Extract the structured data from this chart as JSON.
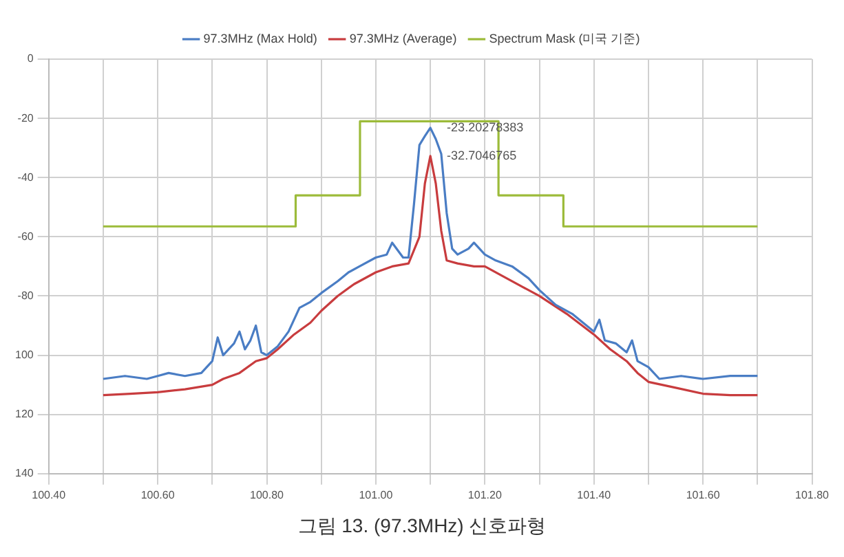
{
  "chart_data": {
    "type": "line",
    "xlim": [
      100.4,
      101.8
    ],
    "xticks": [
      {
        "value": 100.4,
        "label": "100.40"
      },
      {
        "value": 100.5,
        "label": null
      },
      {
        "value": 100.6,
        "label": "100.60"
      },
      {
        "value": 100.7,
        "label": null
      },
      {
        "value": 100.8,
        "label": "100.80"
      },
      {
        "value": 100.9,
        "label": null
      },
      {
        "value": 101.0,
        "label": "101.00"
      },
      {
        "value": 101.1,
        "label": null
      },
      {
        "value": 101.2,
        "label": "101.20"
      },
      {
        "value": 101.3,
        "label": null
      },
      {
        "value": 101.4,
        "label": "101.40"
      },
      {
        "value": 101.5,
        "label": null
      },
      {
        "value": 101.6,
        "label": "101.60"
      },
      {
        "value": 101.7,
        "label": null
      },
      {
        "value": 101.8,
        "label": "101.80"
      }
    ],
    "ylim": [
      -140,
      0
    ],
    "yticks": [
      0,
      -20,
      -40,
      -60,
      -80,
      {
        "value": -100,
        "label": "100"
      },
      {
        "value": -120,
        "label": "120"
      },
      {
        "value": -140,
        "label": "140"
      }
    ],
    "grid": true,
    "legend": "top",
    "marker": "none",
    "series": [
      {
        "name": "97.3MHz (Max Hold)",
        "color": "#4a7dc4",
        "x": [
          100.5,
          100.54,
          100.58,
          100.6,
          100.62,
          100.65,
          100.68,
          100.7,
          100.71,
          100.72,
          100.74,
          100.75,
          100.76,
          100.77,
          100.78,
          100.79,
          100.8,
          100.82,
          100.84,
          100.86,
          100.88,
          100.9,
          100.93,
          100.95,
          100.97,
          101.0,
          101.02,
          101.03,
          101.05,
          101.06,
          101.07,
          101.08,
          101.09,
          101.1,
          101.11,
          101.12,
          101.13,
          101.14,
          101.15,
          101.17,
          101.18,
          101.2,
          101.22,
          101.25,
          101.28,
          101.3,
          101.33,
          101.36,
          101.38,
          101.4,
          101.41,
          101.42,
          101.44,
          101.46,
          101.47,
          101.48,
          101.5,
          101.52,
          101.56,
          101.6,
          101.65,
          101.7
        ],
        "values": [
          -108,
          -107,
          -108,
          -107,
          -106,
          -107,
          -106,
          -102,
          -94,
          -100,
          -96,
          -92,
          -98,
          -95,
          -90,
          -99,
          -100,
          -97,
          -92,
          -84,
          -82,
          -79,
          -75,
          -72,
          -70,
          -67,
          -66,
          -62,
          -67,
          -67,
          -49,
          -29,
          -26,
          -23.20278383,
          -27,
          -32,
          -52,
          -64,
          -66,
          -64,
          -62,
          -66,
          -68,
          -70,
          -74,
          -78,
          -83,
          -86,
          -89,
          -92,
          -88,
          -95,
          -96,
          -99,
          -95,
          -102,
          -104,
          -108,
          -107,
          -108,
          -107,
          -107
        ]
      },
      {
        "name": "97.3MHz (Average)",
        "color": "#c83c3e",
        "x": [
          100.5,
          100.55,
          100.6,
          100.65,
          100.7,
          100.72,
          100.75,
          100.78,
          100.8,
          100.82,
          100.85,
          100.88,
          100.9,
          100.93,
          100.96,
          101.0,
          101.03,
          101.06,
          101.08,
          101.09,
          101.1,
          101.11,
          101.12,
          101.13,
          101.15,
          101.18,
          101.2,
          101.23,
          101.27,
          101.3,
          101.35,
          101.4,
          101.43,
          101.46,
          101.48,
          101.5,
          101.55,
          101.6,
          101.65,
          101.7
        ],
        "values": [
          -113.5,
          -113,
          -112.5,
          -111.5,
          -110,
          -108,
          -106,
          -102,
          -101,
          -98,
          -93,
          -89,
          -85,
          -80,
          -76,
          -72,
          -70,
          -69,
          -60,
          -42,
          -32.7046765,
          -42,
          -58,
          -68,
          -69,
          -70,
          -70,
          -73,
          -77,
          -80,
          -86,
          -93,
          -98,
          -102,
          -106,
          -109,
          -111,
          -113,
          -113.5,
          -113.5
        ]
      },
      {
        "name": "Spectrum Mask (미국 기준)",
        "color": "#9cbb3a",
        "type": "step",
        "x": [
          100.5,
          100.853,
          100.971,
          101.225,
          101.344,
          101.7
        ],
        "values": [
          -56.5,
          -46,
          -21,
          -46,
          -56.5,
          -56.5
        ]
      }
    ],
    "annotations": [
      {
        "text": "-23.20278383",
        "x": 101.1,
        "y": -23.20278383
      },
      {
        "text": "-32.7046765",
        "x": 101.1,
        "y": -32.7046765
      },
      "그림 13. (97.3MHz) 신호파형"
    ]
  }
}
